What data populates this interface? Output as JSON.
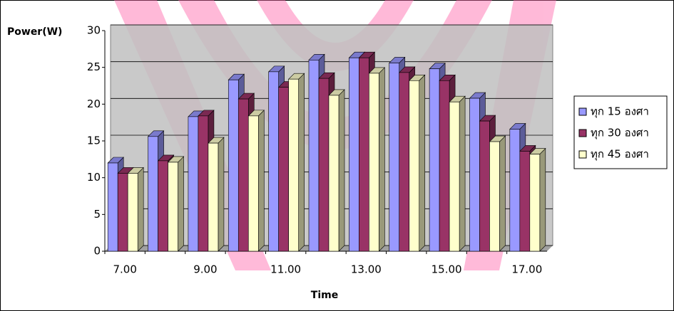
{
  "chart_data": {
    "type": "bar",
    "y_axis_label": "Power(W)",
    "x_axis_label": "Time",
    "categories": [
      "7.00",
      null,
      "9.00",
      null,
      "11.00",
      null,
      "13.00",
      null,
      "15.00",
      null,
      "17.00"
    ],
    "series": [
      {
        "name": "ทุก 15 องศา",
        "color": "#9999ff",
        "values": [
          12,
          15.6,
          18.3,
          23.3,
          24.4,
          26,
          26.3,
          25.6,
          24.8,
          20.8,
          16.6
        ]
      },
      {
        "name": "ทุก 30 องศา",
        "color": "#993366",
        "values": [
          10.6,
          12.3,
          18.4,
          20.7,
          22.3,
          23.5,
          26.3,
          24.3,
          23.2,
          17.7,
          13.6
        ]
      },
      {
        "name": "ทุก 45 องศา",
        "color": "#ffffcc",
        "values": [
          10.6,
          12.1,
          14.7,
          18.4,
          23.4,
          21.2,
          24.2,
          23.2,
          20.3,
          14.9,
          13.2
        ]
      }
    ],
    "ylim": [
      0,
      30
    ],
    "yticks": [
      0,
      5,
      10,
      15,
      20,
      25,
      30
    ],
    "grid": true,
    "legend": "right"
  }
}
